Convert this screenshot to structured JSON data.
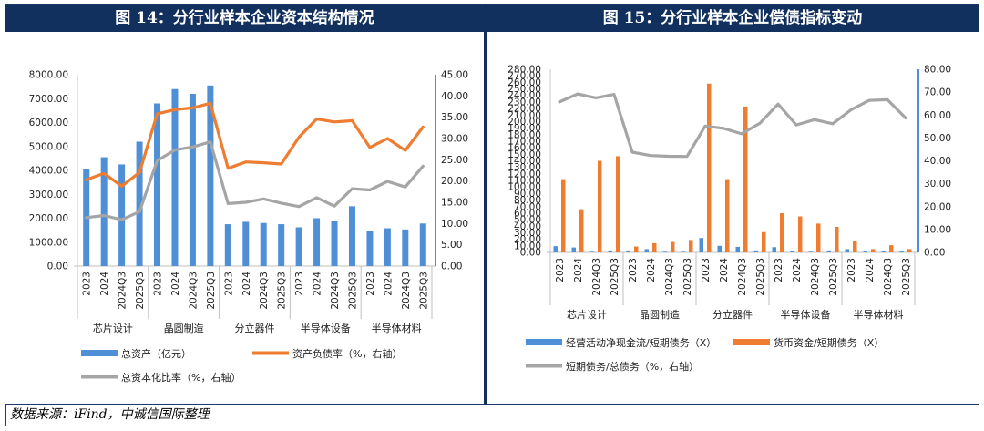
{
  "left_title": "图 14：分行业样本企业资本结构情况",
  "right_title": "图 15：分行业样本企业偿债指标变动",
  "source": "数据来源：iFind，中诚信国际整理",
  "colors": {
    "blue": "#4f8fd6",
    "orange": "#ee7d31",
    "gray": "#a5a5a5",
    "navy": "#12305e"
  },
  "chart_data": [
    {
      "type": "bar",
      "categories": [
        "2023",
        "2024",
        "2024Q3",
        "2025Q3",
        "2023",
        "2024",
        "2024Q3",
        "2025Q3",
        "2023",
        "2024",
        "2024Q3",
        "2025Q3",
        "2023",
        "2024",
        "2024Q3",
        "2025Q3",
        "2023",
        "2024",
        "2024Q3",
        "2025Q3"
      ],
      "groups": [
        "芯片设计",
        "晶圆制造",
        "分立器件",
        "半导体设备",
        "半导体材料"
      ],
      "y_ticks": [
        "0.00",
        "1000.00",
        "2000.00",
        "3000.00",
        "4000.00",
        "5000.00",
        "6000.00",
        "7000.00",
        "8000.00"
      ],
      "y2_ticks": [
        "0.00",
        "5.00",
        "10.00",
        "15.00",
        "20.00",
        "25.00",
        "30.00",
        "35.00",
        "40.00",
        "45.00"
      ],
      "ylim": [
        0,
        8000
      ],
      "y2lim": [
        0,
        45
      ],
      "series": [
        {
          "name": "总资产（亿元）",
          "kind": "bar",
          "axis": "left",
          "color": "#4f8fd6",
          "values": [
            4050,
            4550,
            4250,
            5200,
            6800,
            7400,
            7200,
            7550,
            1750,
            1850,
            1800,
            1750,
            1620,
            2000,
            1880,
            2500,
            1450,
            1580,
            1530,
            1780
          ]
        },
        {
          "name": "资产负债率（%，右轴）",
          "kind": "line",
          "axis": "right",
          "color": "#ee7d31",
          "values": [
            20.3,
            21.8,
            18.8,
            22.0,
            35.8,
            36.8,
            37.2,
            38.3,
            23.0,
            24.5,
            24.3,
            24.0,
            30.3,
            34.6,
            33.9,
            34.2,
            27.9,
            30.0,
            27.2,
            32.7
          ]
        },
        {
          "name": "总资本化比率（%，右轴）",
          "kind": "line",
          "axis": "right",
          "color": "#a5a5a5",
          "values": [
            11.4,
            11.9,
            10.9,
            12.8,
            24.8,
            27.3,
            28.0,
            29.2,
            14.7,
            15.0,
            15.8,
            14.8,
            14.0,
            16.1,
            14.1,
            18.2,
            17.9,
            19.9,
            18.6,
            23.5
          ]
        }
      ]
    },
    {
      "type": "bar",
      "categories": [
        "2023",
        "2024",
        "2024Q3",
        "2025Q3",
        "2023",
        "2024",
        "2024Q3",
        "2025Q3",
        "2023",
        "2024",
        "2024Q3",
        "2025Q3",
        "2023",
        "2024",
        "2024Q3",
        "2025Q3",
        "2023",
        "2024",
        "2024Q3",
        "2025Q3"
      ],
      "groups": [
        "芯片设计",
        "晶圆制造",
        "分立器件",
        "半导体设备",
        "半导体材料"
      ],
      "y_ticks": [
        "0.00",
        "10.00",
        "20.00",
        "30.00",
        "40.00",
        "50.00",
        "60.00",
        "70.00",
        "80.00",
        "90.00",
        "100.00",
        "110.00",
        "120.00",
        "130.00",
        "140.00",
        "150.00",
        "160.00",
        "170.00",
        "180.00",
        "190.00",
        "200.00",
        "210.00",
        "220.00",
        "230.00",
        "240.00",
        "250.00",
        "260.00",
        "270.00",
        "280.00"
      ],
      "y2_ticks": [
        "0.00",
        "10.00",
        "20.00",
        "30.00",
        "40.00",
        "50.00",
        "60.00",
        "70.00",
        "80.00"
      ],
      "ylim": [
        0,
        280
      ],
      "y2lim": [
        0,
        80
      ],
      "series": [
        {
          "name": "经营活动净现金流/短期债务（X）",
          "kind": "bar",
          "axis": "left",
          "color": "#4f8fd6",
          "values": [
            9.5,
            7.5,
            1.0,
            3.0,
            3.0,
            5.0,
            1.0,
            1.0,
            22.0,
            10.0,
            8.5,
            3.0,
            8.0,
            1.5,
            1.0,
            3.0,
            5.0,
            2.5,
            2.0,
            1.5
          ]
        },
        {
          "name": "货币资金/短期债务（X）",
          "kind": "bar",
          "axis": "left",
          "color": "#ee7d31",
          "values": [
            112,
            66,
            140,
            147,
            9,
            14,
            16,
            19,
            258,
            112,
            223,
            31,
            60,
            55,
            44,
            39,
            17,
            5,
            11,
            5
          ]
        },
        {
          "name": "短期债务/总债务（%，右轴）",
          "kind": "line",
          "axis": "right",
          "color": "#a5a5a5",
          "values": [
            65.7,
            69.2,
            67.5,
            69.0,
            43.8,
            42.3,
            42.0,
            41.9,
            55.2,
            54.2,
            51.8,
            56.4,
            64.8,
            55.7,
            58.0,
            56.2,
            62.3,
            66.4,
            66.7,
            58.7
          ]
        }
      ]
    }
  ]
}
